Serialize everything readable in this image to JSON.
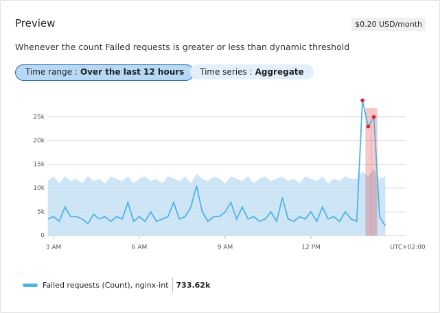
{
  "header": {
    "title": "Preview",
    "cost": "$0.20 USD/month"
  },
  "description": "Whenever the count Failed requests is greater or less than dynamic threshold",
  "filters": [
    {
      "label": "Time range :",
      "value": "Over the last 12 hours"
    },
    {
      "label": "Time series :",
      "value": "Aggregate"
    }
  ],
  "chart_data": {
    "type": "line",
    "x": [
      2.8,
      3.0,
      3.2,
      3.4,
      3.6,
      3.8,
      4.0,
      4.2,
      4.4,
      4.6,
      4.8,
      5.0,
      5.2,
      5.4,
      5.6,
      5.8,
      6.0,
      6.2,
      6.4,
      6.6,
      6.8,
      7.0,
      7.2,
      7.4,
      7.6,
      7.8,
      8.0,
      8.2,
      8.4,
      8.6,
      8.8,
      9.0,
      9.2,
      9.4,
      9.6,
      9.8,
      10.0,
      10.2,
      10.4,
      10.6,
      10.8,
      11.0,
      11.2,
      11.4,
      11.6,
      11.8,
      12.0,
      12.2,
      12.4,
      12.6,
      12.8,
      13.0,
      13.2,
      13.4,
      13.6,
      13.8,
      14.0,
      14.2,
      14.4,
      14.6
    ],
    "xlim": [
      2.75,
      15.25
    ],
    "xticks": [
      {
        "value": 3,
        "label": "3 AM"
      },
      {
        "value": 6,
        "label": "6 AM"
      },
      {
        "value": 9,
        "label": "9 AM"
      },
      {
        "value": 12,
        "label": "12 PM"
      }
    ],
    "x_axis_label": "UTC+02:00",
    "ylim": [
      0,
      28000
    ],
    "yticks": [
      0,
      {
        "value": 5000,
        "label": "5k"
      },
      {
        "value": 10000,
        "label": "10k"
      },
      {
        "value": 15000,
        "label": "15k"
      },
      {
        "value": 20000,
        "label": "20k"
      },
      {
        "value": 25000,
        "label": "25k"
      }
    ],
    "grid": true,
    "series": [
      {
        "name": "Failed requests (Count), nginx-int",
        "total": "733.62k",
        "color": "#4db3e6",
        "values": [
          3500,
          4000,
          3000,
          6000,
          4000,
          4000,
          3500,
          2500,
          4500,
          3500,
          4000,
          3000,
          4000,
          3500,
          7000,
          3000,
          4000,
          3000,
          5000,
          3000,
          3500,
          4000,
          7000,
          3500,
          4000,
          6000,
          10500,
          5000,
          3000,
          4000,
          4000,
          5000,
          7000,
          3500,
          6000,
          3500,
          4000,
          3000,
          3500,
          5000,
          3000,
          8000,
          3500,
          3000,
          4000,
          3500,
          5000,
          3000,
          6000,
          3500,
          4000,
          3000,
          5000,
          3500,
          3000,
          28500,
          23000,
          25000,
          4000,
          2000
        ]
      }
    ],
    "threshold_upper": [
      11500,
      12500,
      11000,
      12500,
      11500,
      12000,
      11000,
      12500,
      11500,
      12000,
      11000,
      12500,
      12000,
      11500,
      12500,
      11000,
      12000,
      12500,
      11500,
      12000,
      11000,
      12500,
      12000,
      11500,
      12500,
      11000,
      13000,
      12000,
      11500,
      12500,
      12000,
      11000,
      12500,
      12000,
      11500,
      12500,
      11000,
      12000,
      12500,
      11500,
      12000,
      12500,
      11500,
      12000,
      11000,
      12500,
      12000,
      11500,
      12500,
      11000,
      12000,
      11500,
      12500,
      12000,
      12000,
      13500,
      12500,
      14000,
      12000,
      12500
    ],
    "threshold_color": "#bcdcf2",
    "alert_color": "#d9252b"
  }
}
